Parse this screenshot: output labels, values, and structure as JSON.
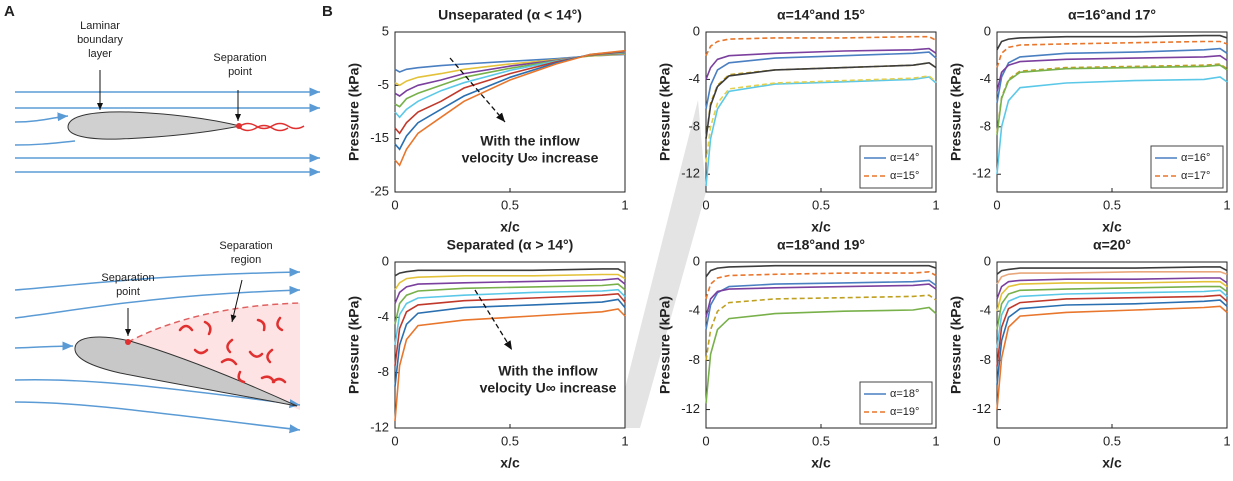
{
  "panel_a": {
    "label": "A",
    "top": {
      "boundary_layer": [
        "Laminar",
        "boundary",
        "layer"
      ],
      "separation_point": [
        "Separation",
        "point"
      ]
    },
    "bottom": {
      "separation_point": [
        "Separation",
        "point"
      ],
      "separation_region": [
        "Separation",
        "region"
      ]
    }
  },
  "panel_b_label": "B",
  "chart_data": [
    {
      "type": "line",
      "title": "Unseparated (α < 14°)",
      "xlabel": "x/c",
      "ylabel": "Pressure (kPa)",
      "annotation": [
        "With the inflow",
        "velocity U∞ increase"
      ],
      "x": [
        0,
        0.02,
        0.05,
        0.1,
        0.2,
        0.3,
        0.5,
        0.7,
        0.85,
        1
      ],
      "xlim": [
        0,
        1
      ],
      "xticks": [
        0,
        0.5,
        1
      ],
      "ylim": [
        -25,
        5
      ],
      "yticks": [
        5,
        -5,
        -15,
        -25
      ],
      "series": [
        {
          "color": "#4a7fc1",
          "dash": false,
          "values": [
            -2,
            -2.5,
            -2,
            -1.7,
            -1.3,
            -1,
            -0.5,
            0,
            0.5,
            0.8
          ]
        },
        {
          "color": "#e3c23a",
          "dash": false,
          "values": [
            -4.5,
            -5,
            -4.2,
            -3.5,
            -2.8,
            -2,
            -1,
            -0.2,
            0.5,
            0.9
          ]
        },
        {
          "color": "#7b3f9e",
          "dash": false,
          "values": [
            -6.5,
            -7,
            -6,
            -5,
            -4,
            -2.8,
            -1.4,
            -0.3,
            0.6,
            1
          ]
        },
        {
          "color": "#78b04a",
          "dash": false,
          "values": [
            -8.5,
            -9,
            -7.5,
            -6.5,
            -5,
            -3.5,
            -1.8,
            -0.4,
            0.6,
            1.1
          ]
        },
        {
          "color": "#5bc8e8",
          "dash": false,
          "values": [
            -10,
            -11,
            -9.5,
            -8,
            -6,
            -4.5,
            -2.2,
            -0.5,
            0.7,
            1.2
          ]
        },
        {
          "color": "#c0392b",
          "dash": false,
          "values": [
            -13,
            -14,
            -12,
            -10,
            -8,
            -5.5,
            -2.8,
            -0.6,
            0.7,
            1.3
          ]
        },
        {
          "color": "#2a6fb0",
          "dash": false,
          "values": [
            -16,
            -17,
            -14.5,
            -12,
            -9.5,
            -7,
            -3.5,
            -0.8,
            0.8,
            1.4
          ]
        },
        {
          "color": "#e8762c",
          "dash": false,
          "values": [
            -19,
            -20,
            -17,
            -14,
            -11,
            -8,
            -4,
            -1,
            0.8,
            1.5
          ]
        }
      ]
    },
    {
      "type": "line",
      "title": "Separated (α > 14°)",
      "xlabel": "x/c",
      "ylabel": "Pressure (kPa)",
      "annotation": [
        "With the inflow",
        "velocity U∞ increase"
      ],
      "x": [
        0,
        0.02,
        0.05,
        0.1,
        0.3,
        0.6,
        0.9,
        0.97,
        1
      ],
      "xlim": [
        0,
        1
      ],
      "xticks": [
        0,
        0.5,
        1
      ],
      "ylim": [
        -12,
        0
      ],
      "yticks": [
        0,
        -4,
        -8,
        -12
      ],
      "series": [
        {
          "color": "#3c3c3c",
          "dash": false,
          "values": [
            -1,
            -0.8,
            -0.7,
            -0.6,
            -0.6,
            -0.6,
            -0.5,
            -0.5,
            -0.8
          ]
        },
        {
          "color": "#e3c23a",
          "dash": false,
          "values": [
            -2,
            -1.5,
            -1.2,
            -1.1,
            -1,
            -1,
            -0.9,
            -0.9,
            -1.2
          ]
        },
        {
          "color": "#7b3f9e",
          "dash": false,
          "values": [
            -3,
            -2.2,
            -1.8,
            -1.6,
            -1.5,
            -1.4,
            -1.3,
            -1.2,
            -1.6
          ]
        },
        {
          "color": "#78b04a",
          "dash": false,
          "values": [
            -4.5,
            -3,
            -2.4,
            -2.1,
            -1.9,
            -1.8,
            -1.7,
            -1.6,
            -2
          ]
        },
        {
          "color": "#5bc8e8",
          "dash": false,
          "values": [
            -6,
            -3.8,
            -3,
            -2.6,
            -2.4,
            -2.2,
            -2.1,
            -2,
            -2.5
          ]
        },
        {
          "color": "#c0392b",
          "dash": false,
          "values": [
            -7.5,
            -4.8,
            -3.6,
            -3.1,
            -2.8,
            -2.6,
            -2.4,
            -2.3,
            -2.9
          ]
        },
        {
          "color": "#2a6fb0",
          "dash": false,
          "values": [
            -9,
            -6,
            -4.5,
            -3.7,
            -3.3,
            -3.1,
            -2.9,
            -2.7,
            -3.3
          ]
        },
        {
          "color": "#e8762c",
          "dash": false,
          "values": [
            -11.5,
            -7.5,
            -5.6,
            -4.6,
            -4.2,
            -3.9,
            -3.6,
            -3.4,
            -3.9
          ]
        }
      ]
    },
    {
      "type": "line",
      "title": "α=14°and 15°",
      "xlabel": "x/c",
      "ylabel": "Pressure (kPa)",
      "legend": "lower right",
      "x": [
        0,
        0.02,
        0.05,
        0.1,
        0.3,
        0.6,
        0.9,
        0.97,
        1
      ],
      "xlim": [
        0,
        1
      ],
      "xticks": [
        0,
        0.5,
        1
      ],
      "ylim": [
        -13.5,
        0
      ],
      "yticks": [
        0,
        -4,
        -8,
        -12
      ],
      "series": [
        {
          "name": "α=14°",
          "color": "#4a7fc1",
          "dash": false,
          "values": [
            -6.5,
            -4.5,
            -3.2,
            -2.6,
            -2.2,
            -2,
            -1.8,
            -1.7,
            -2.2
          ]
        },
        {
          "name": "α=15°",
          "color": "#e8762c",
          "dash": true,
          "values": [
            -2,
            -1.2,
            -0.8,
            -0.6,
            -0.5,
            -0.5,
            -0.4,
            -0.4,
            -0.7
          ]
        },
        {
          "color": "#7b3f9e",
          "dash": false,
          "values": [
            -4,
            -3,
            -2.3,
            -2,
            -1.8,
            -1.6,
            -1.5,
            -1.4,
            -1.8
          ]
        },
        {
          "color": "#c0a020",
          "dash": true,
          "values": [
            -9,
            -6,
            -4.5,
            -3.6,
            -3.2,
            -3,
            -2.8,
            -2.6,
            -3
          ]
        },
        {
          "color": "#3c3c3c",
          "dash": false,
          "values": [
            -9,
            -6.2,
            -4.6,
            -3.7,
            -3.2,
            -3,
            -2.8,
            -2.6,
            -3
          ]
        },
        {
          "color": "#5bc8e8",
          "dash": false,
          "values": [
            -13,
            -9,
            -6.5,
            -5,
            -4.4,
            -4.2,
            -4,
            -3.8,
            -4.3
          ]
        },
        {
          "color": "#e3d050",
          "dash": true,
          "values": [
            -11,
            -8,
            -6,
            -4.8,
            -4.3,
            -4.1,
            -3.9,
            -3.7,
            -4.2
          ]
        }
      ]
    },
    {
      "type": "line",
      "title": "α=16°and 17°",
      "xlabel": "x/c",
      "ylabel": "Pressure (kPa)",
      "legend": "lower right",
      "x": [
        0,
        0.02,
        0.05,
        0.1,
        0.3,
        0.6,
        0.9,
        0.97,
        1
      ],
      "xlim": [
        0,
        1
      ],
      "xticks": [
        0,
        0.5,
        1
      ],
      "ylim": [
        -13.5,
        0
      ],
      "yticks": [
        0,
        -4,
        -8,
        -12
      ],
      "series": [
        {
          "name": "α=16°",
          "color": "#4a7fc1",
          "dash": false,
          "values": [
            -6,
            -3.8,
            -2.6,
            -2.1,
            -1.8,
            -1.7,
            -1.5,
            -1.4,
            -1.8
          ]
        },
        {
          "name": "α=17°",
          "color": "#e8762c",
          "dash": true,
          "values": [
            -3,
            -1.8,
            -1.3,
            -1.1,
            -1,
            -0.9,
            -0.8,
            -0.8,
            -1
          ]
        },
        {
          "color": "#3c3c3c",
          "dash": false,
          "values": [
            -1.5,
            -0.8,
            -0.6,
            -0.5,
            -0.4,
            -0.4,
            -0.3,
            -0.3,
            -0.5
          ]
        },
        {
          "color": "#7b3f9e",
          "dash": false,
          "values": [
            -5,
            -3.4,
            -2.8,
            -2.5,
            -2.3,
            -2.2,
            -2.1,
            -2,
            -2.4
          ]
        },
        {
          "color": "#c0a020",
          "dash": true,
          "values": [
            -8.5,
            -5.5,
            -4,
            -3.3,
            -3,
            -2.9,
            -2.8,
            -2.7,
            -3.1
          ]
        },
        {
          "color": "#78b04a",
          "dash": false,
          "values": [
            -8.7,
            -5.6,
            -4.1,
            -3.4,
            -3.1,
            -3,
            -2.9,
            -2.8,
            -3.2
          ]
        },
        {
          "color": "#5bc8e8",
          "dash": false,
          "values": [
            -12,
            -8,
            -5.8,
            -4.7,
            -4.3,
            -4.1,
            -4,
            -3.8,
            -4.2
          ]
        }
      ]
    },
    {
      "type": "line",
      "title": "α=18°and 19°",
      "xlabel": "x/c",
      "ylabel": "Pressure (kPa)",
      "legend": "lower right",
      "x": [
        0,
        0.02,
        0.05,
        0.1,
        0.3,
        0.6,
        0.9,
        0.97,
        1
      ],
      "xlim": [
        0,
        1
      ],
      "xticks": [
        0,
        0.5,
        1
      ],
      "ylim": [
        -13.5,
        0
      ],
      "yticks": [
        0,
        -4,
        -8,
        -12
      ],
      "series": [
        {
          "name": "α=18°",
          "color": "#4a7fc1",
          "dash": false,
          "values": [
            -5.5,
            -3.5,
            -2.5,
            -2,
            -1.8,
            -1.7,
            -1.6,
            -1.5,
            -1.9
          ]
        },
        {
          "name": "α=19°",
          "color": "#e8762c",
          "dash": true,
          "values": [
            -3,
            -1.8,
            -1.3,
            -1.1,
            -1,
            -0.9,
            -0.9,
            -0.8,
            -1.1
          ]
        },
        {
          "color": "#3c3c3c",
          "dash": false,
          "values": [
            -1.2,
            -0.7,
            -0.5,
            -0.4,
            -0.3,
            -0.3,
            -0.3,
            -0.3,
            -0.5
          ]
        },
        {
          "color": "#7b3f9e",
          "dash": false,
          "values": [
            -4.5,
            -3,
            -2.4,
            -2.2,
            -2.1,
            -2,
            -1.9,
            -1.8,
            -2.2
          ]
        },
        {
          "color": "#c0a020",
          "dash": true,
          "values": [
            -8,
            -5.5,
            -4,
            -3.3,
            -3,
            -2.9,
            -2.8,
            -2.7,
            -3.1
          ]
        },
        {
          "color": "#78b04a",
          "dash": false,
          "values": [
            -11.5,
            -7.5,
            -5.5,
            -4.6,
            -4.2,
            -4,
            -3.9,
            -3.7,
            -4.2
          ]
        }
      ]
    },
    {
      "type": "line",
      "title": "α=20°",
      "xlabel": "x/c",
      "ylabel": "Pressure (kPa)",
      "x": [
        0,
        0.02,
        0.05,
        0.1,
        0.3,
        0.6,
        0.9,
        0.97,
        1
      ],
      "xlim": [
        0,
        1
      ],
      "xticks": [
        0,
        0.5,
        1
      ],
      "ylim": [
        -13.5,
        0
      ],
      "yticks": [
        0,
        -4,
        -8,
        -12
      ],
      "series": [
        {
          "color": "#3c3c3c",
          "dash": false,
          "values": [
            -1,
            -0.7,
            -0.6,
            -0.5,
            -0.5,
            -0.5,
            -0.4,
            -0.4,
            -0.7
          ]
        },
        {
          "color": "#e8a87c",
          "dash": false,
          "values": [
            -1.8,
            -1.2,
            -1,
            -0.9,
            -0.9,
            -0.8,
            -0.8,
            -0.8,
            -1
          ]
        },
        {
          "color": "#7b3f9e",
          "dash": false,
          "values": [
            -3,
            -2,
            -1.6,
            -1.5,
            -1.4,
            -1.4,
            -1.3,
            -1.3,
            -1.7
          ]
        },
        {
          "color": "#e3c23a",
          "dash": false,
          "values": [
            -4,
            -2.6,
            -2,
            -1.8,
            -1.7,
            -1.7,
            -1.6,
            -1.6,
            -2
          ]
        },
        {
          "color": "#78b04a",
          "dash": false,
          "values": [
            -5.5,
            -3.4,
            -2.6,
            -2.3,
            -2.2,
            -2.1,
            -2,
            -2,
            -2.4
          ]
        },
        {
          "color": "#5bc8e8",
          "dash": false,
          "values": [
            -7,
            -4.3,
            -3.2,
            -2.8,
            -2.6,
            -2.5,
            -2.4,
            -2.3,
            -2.8
          ]
        },
        {
          "color": "#c0392b",
          "dash": false,
          "values": [
            -8.5,
            -5.3,
            -3.8,
            -3.3,
            -3,
            -2.9,
            -2.8,
            -2.7,
            -3.2
          ]
        },
        {
          "color": "#2a6fb0",
          "dash": false,
          "values": [
            -10,
            -6.4,
            -4.5,
            -3.8,
            -3.5,
            -3.4,
            -3.2,
            -3.1,
            -3.6
          ]
        },
        {
          "color": "#e8762c",
          "dash": false,
          "values": [
            -12,
            -7.8,
            -5.3,
            -4.4,
            -4.1,
            -3.9,
            -3.7,
            -3.6,
            -4.1
          ]
        }
      ]
    }
  ]
}
